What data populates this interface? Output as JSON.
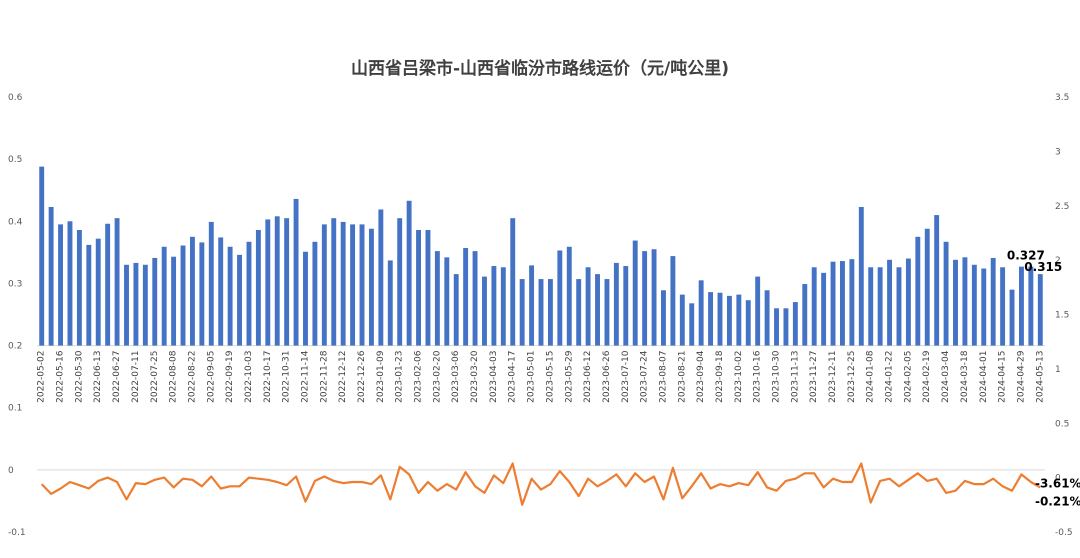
{
  "chart_data": {
    "type": "bar",
    "title": "山西省吕梁市-山西省临汾市路线运价（元/吨公里)",
    "colors": {
      "bar": "#4472C4",
      "line": "#ED7D31",
      "grid": "#D9D9D9",
      "title": "#404040"
    },
    "grid": false,
    "legend": "none",
    "left_axis": {
      "ticks": [
        "-0.1",
        "0",
        "0.1",
        "0.2",
        "0.3",
        "0.4",
        "0.5",
        "0.6"
      ],
      "ylim": [
        -0.1,
        0.6
      ]
    },
    "right_axis": {
      "ticks": [
        "-0.5",
        "0",
        "0.5",
        "1",
        "1.5",
        "2",
        "2.5",
        "3",
        "3.5"
      ],
      "ylim": [
        -0.5,
        3.5
      ]
    },
    "x_tick_labels": [
      "2022-05-02",
      "2022-05-16",
      "2022-05-30",
      "2022-06-13",
      "2022-06-27",
      "2022-07-11",
      "2022-07-25",
      "2022-08-08",
      "2022-08-22",
      "2022-09-05",
      "2022-09-19",
      "2022-10-03",
      "2022-10-17",
      "2022-10-31",
      "2022-11-14",
      "2022-11-28",
      "2022-12-12",
      "2022-12-26",
      "2023-01-09",
      "2023-01-23",
      "2023-02-06",
      "2023-02-20",
      "2023-03-06",
      "2023-03-20",
      "2023-04-03",
      "2023-04-17",
      "2023-05-01",
      "2023-05-15",
      "2023-05-29",
      "2023-06-12",
      "2023-06-26",
      "2023-07-10",
      "2023-07-24",
      "2023-08-07",
      "2023-08-21",
      "2023-09-04",
      "2023-09-18",
      "2023-10-02",
      "2023-10-16",
      "2023-10-30",
      "2023-11-13",
      "2023-11-27",
      "2023-12-11",
      "2023-12-25",
      "2024-01-08",
      "2024-01-22",
      "2024-02-05",
      "2024-02-19",
      "2024-03-04",
      "2024-03-18",
      "2024-04-01",
      "2024-04-15",
      "2024-04-29",
      "2024-05-13"
    ],
    "series": [
      {
        "type": "bar",
        "axis": "left",
        "values": [
          0.488,
          0.423,
          0.395,
          0.4,
          0.386,
          0.362,
          0.372,
          0.396,
          0.405,
          0.33,
          0.333,
          0.33,
          0.341,
          0.359,
          0.343,
          0.361,
          0.375,
          0.366,
          0.399,
          0.374,
          0.359,
          0.346,
          0.367,
          0.386,
          0.403,
          0.408,
          0.405,
          0.436,
          0.351,
          0.367,
          0.395,
          0.405,
          0.399,
          0.395,
          0.395,
          0.388,
          0.419,
          0.337,
          0.405,
          0.433,
          0.386,
          0.386,
          0.352,
          0.342,
          0.315,
          0.357,
          0.352,
          0.311,
          0.328,
          0.326,
          0.405,
          0.307,
          0.329,
          0.307,
          0.307,
          0.353,
          0.359,
          0.307,
          0.326,
          0.315,
          0.307,
          0.333,
          0.328,
          0.369,
          0.352,
          0.355,
          0.289,
          0.344,
          0.282,
          0.268,
          0.305,
          0.286,
          0.285,
          0.28,
          0.282,
          0.273,
          0.311,
          0.289,
          0.26,
          0.26,
          0.27,
          0.299,
          0.326,
          0.317,
          0.335,
          0.336,
          0.339,
          0.423,
          0.326,
          0.326,
          0.338,
          0.326,
          0.34,
          0.375,
          0.388,
          0.41,
          0.367,
          0.338,
          0.342,
          0.33,
          0.324,
          0.341,
          0.326,
          0.29,
          0.327,
          0.327,
          0.315
        ]
      },
      {
        "type": "line",
        "axis": "right",
        "values": [
          -0.06,
          -0.15,
          -0.1,
          -0.04,
          -0.07,
          -0.1,
          -0.03,
          0.0,
          -0.04,
          -0.2,
          -0.05,
          -0.06,
          -0.02,
          0.0,
          -0.09,
          -0.01,
          -0.02,
          -0.08,
          0.01,
          -0.1,
          -0.08,
          -0.08,
          0.0,
          -0.01,
          -0.02,
          -0.04,
          -0.07,
          0.01,
          -0.22,
          -0.03,
          0.01,
          -0.03,
          -0.05,
          -0.04,
          -0.04,
          -0.06,
          0.02,
          -0.2,
          0.1,
          0.03,
          -0.14,
          -0.04,
          -0.12,
          -0.06,
          -0.11,
          0.05,
          -0.08,
          -0.14,
          0.02,
          -0.05,
          0.13,
          -0.25,
          -0.01,
          -0.11,
          -0.06,
          0.06,
          -0.04,
          -0.17,
          -0.01,
          -0.08,
          -0.03,
          0.03,
          -0.08,
          0.04,
          -0.04,
          0.01,
          -0.2,
          0.09,
          -0.19,
          -0.08,
          0.04,
          -0.1,
          -0.06,
          -0.08,
          -0.05,
          -0.07,
          0.05,
          -0.09,
          -0.12,
          -0.03,
          -0.01,
          0.04,
          0.04,
          -0.09,
          -0.01,
          -0.04,
          -0.04,
          0.13,
          -0.23,
          -0.03,
          -0.01,
          -0.08,
          -0.02,
          0.04,
          -0.03,
          -0.01,
          -0.14,
          -0.12,
          -0.03,
          -0.06,
          -0.06,
          -0.01,
          -0.08,
          -0.12,
          0.03,
          -0.04,
          -0.09
        ]
      }
    ],
    "annotations": [
      {
        "text": "0.327",
        "series": "bar",
        "index": 105
      },
      {
        "text": "0.315",
        "series": "bar",
        "index": 106
      },
      {
        "text": "-3.61%",
        "series": "line",
        "index": 106
      },
      {
        "text": "-0.21%",
        "series": "line",
        "index": 106
      }
    ]
  }
}
